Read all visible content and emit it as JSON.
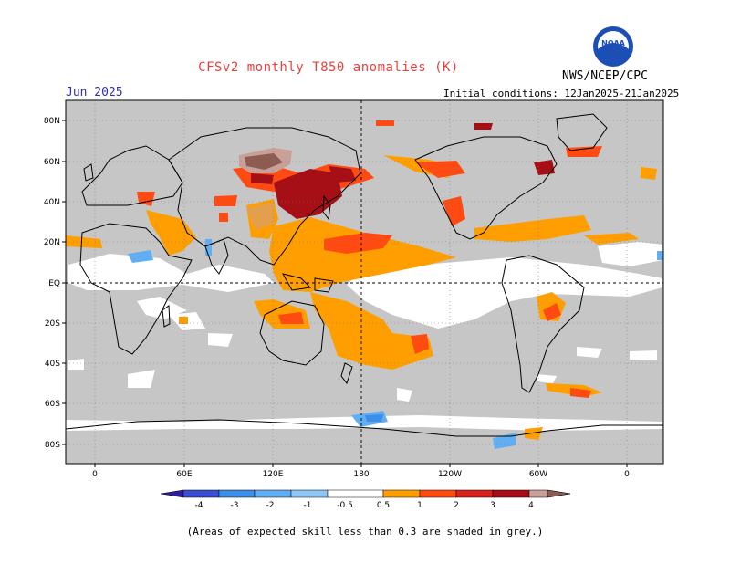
{
  "title": "CFSv2 monthly T850 anomalies (K)",
  "month": "Jun 2025",
  "agency": "NWS/NCEP/CPC",
  "initial_conditions": "Initial conditions: 12Jan2025-21Jan2025",
  "footnote": "(Areas of expected skill less than 0.3 are shaded in grey.)",
  "logo_text": "NOAA",
  "axes": {
    "lat_labels": [
      "80N",
      "60N",
      "40N",
      "20N",
      "EQ",
      "20S",
      "40S",
      "60S",
      "80S"
    ],
    "lon_labels": [
      "0",
      "60E",
      "120E",
      "180",
      "120W",
      "60W",
      "0"
    ]
  },
  "colorbar": {
    "ticks": [
      "-4",
      "-3",
      "-2",
      "-1",
      "-0.5",
      "0.5",
      "1",
      "2",
      "3",
      "4"
    ],
    "colors": [
      "#2c1e9e",
      "#3a4ed0",
      "#3e8ee8",
      "#62aef2",
      "#8fc6f8",
      "#ffffff",
      "#ff9e00",
      "#ff4a12",
      "#d8231c",
      "#a50f15",
      "#c9a097",
      "#8d5b52"
    ]
  },
  "colors": {
    "land_ocean_skill_mask": "#c6c6c6",
    "no_anomaly": "#ffffff",
    "title": "#e8413b",
    "month": "#2f2fb4"
  }
}
